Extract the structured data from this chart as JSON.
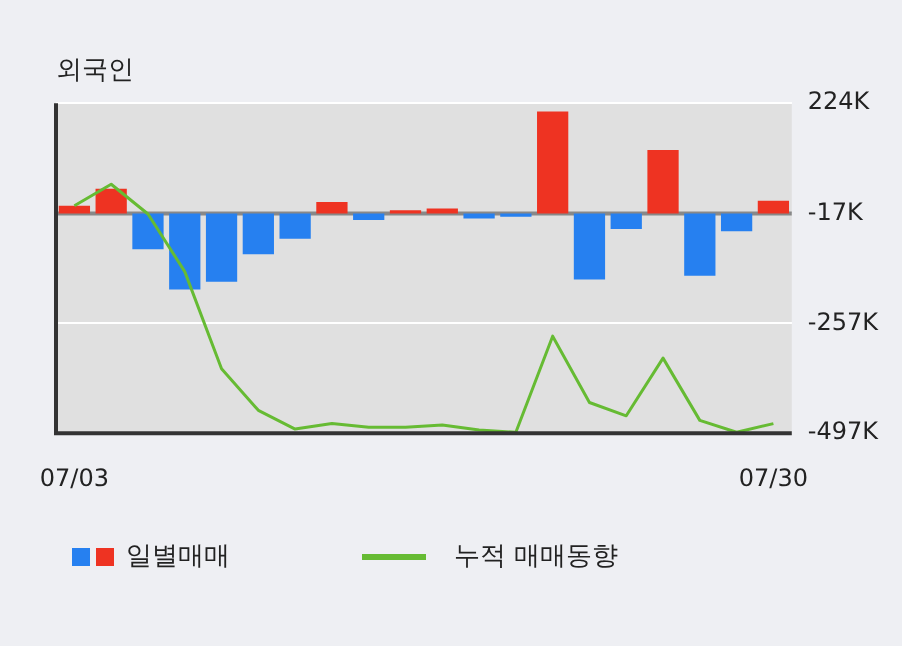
{
  "chart_data": {
    "type": "bar",
    "title": "외국인",
    "categories": [
      "07/03",
      null,
      null,
      null,
      null,
      null,
      null,
      null,
      null,
      null,
      null,
      null,
      null,
      null,
      null,
      null,
      null,
      null,
      null,
      "07/30"
    ],
    "ylim": [
      -497,
      224
    ],
    "yticks": [
      {
        "value": -497,
        "label": "-497K"
      },
      {
        "value": -257,
        "label": "-257K"
      },
      {
        "value": -17,
        "label": "-17K"
      },
      {
        "value": 224,
        "label": "224K"
      }
    ],
    "grid": "y",
    "legend": "bottom",
    "ref_lines": [
      {
        "axis": "y",
        "value": -17,
        "color": "#888888"
      }
    ],
    "series": [
      {
        "name": "일별매매",
        "values": [
          17,
          54,
          -78,
          -166,
          -149,
          -89,
          -55,
          25,
          -14,
          7,
          11,
          -11,
          -7,
          223,
          -144,
          -34,
          139,
          -136,
          -39,
          28
        ],
        "base": [
          -17,
          -17,
          -17,
          -17,
          -17,
          -17,
          -17,
          -17,
          -17,
          -17,
          -17,
          -17,
          -17,
          -17,
          -17,
          -17,
          -17,
          -17,
          -17,
          -17
        ],
        "colors": [
          "#ee3322",
          "#ee3322",
          "#2680f0",
          "#2680f0",
          "#2680f0",
          "#2680f0",
          "#2680f0",
          "#ee3322",
          "#2680f0",
          "#ee3322",
          "#ee3322",
          "#2680f0",
          "#2680f0",
          "#ee3322",
          "#2680f0",
          "#2680f0",
          "#ee3322",
          "#2680f0",
          "#2680f0",
          "#ee3322"
        ]
      },
      {
        "name": "누적 매매동향",
        "type": "line",
        "color": "#66bb33",
        "marker": "none",
        "values": [
          0,
          47,
          -18,
          -144,
          -356,
          -447,
          -488,
          -476,
          -484,
          -484,
          -479,
          -490,
          -495,
          -285,
          -430,
          -459,
          -333,
          -469,
          -495,
          -476
        ]
      }
    ]
  }
}
